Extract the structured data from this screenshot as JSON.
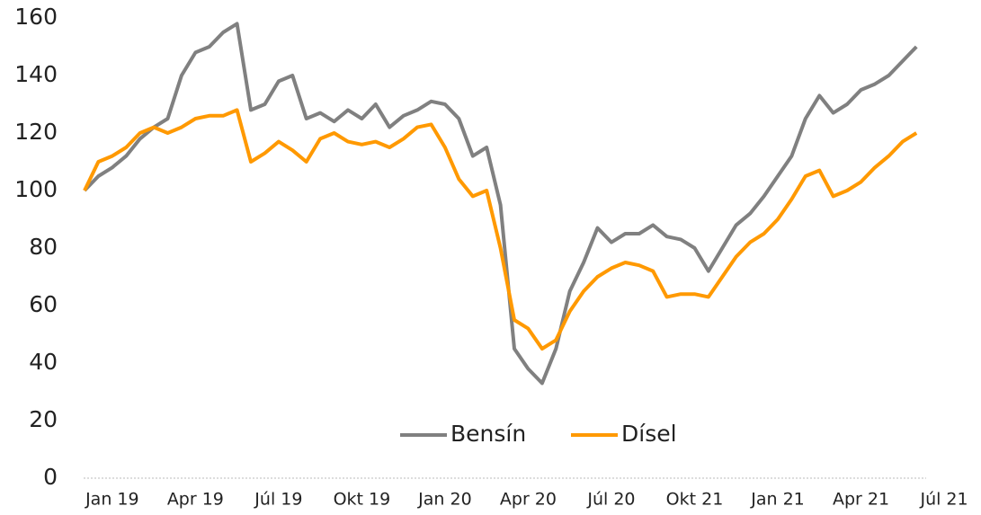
{
  "chart_data": {
    "type": "line",
    "categories": [
      null,
      null,
      "Jan 19",
      null,
      null,
      null,
      null,
      null,
      "Apr 19",
      null,
      null,
      null,
      null,
      null,
      "Júl 19",
      null,
      null,
      null,
      null,
      null,
      "Okt 19",
      null,
      null,
      null,
      null,
      null,
      "Jan 20",
      null,
      null,
      null,
      null,
      null,
      "Apr 20",
      null,
      null,
      null,
      null,
      null,
      "Júl 20",
      null,
      null,
      null,
      null,
      null,
      "Okt 21",
      null,
      null,
      null,
      null,
      null,
      "Jan 21",
      null,
      null,
      null,
      null,
      null,
      "Apr 21",
      null,
      null,
      null,
      null,
      null,
      "Júl 21"
    ],
    "series": [
      {
        "name": "Bensín",
        "color": "#808080",
        "values": [
          100,
          105,
          108,
          112,
          118,
          122,
          125,
          140,
          148,
          150,
          155,
          158,
          128,
          130,
          138,
          140,
          125,
          127,
          124,
          128,
          125,
          130,
          122,
          126,
          128,
          131,
          130,
          125,
          112,
          115,
          95,
          45,
          38,
          33,
          45,
          65,
          75,
          87,
          82,
          85,
          85,
          88,
          84,
          83,
          80,
          72,
          80,
          88,
          92,
          98,
          105,
          112,
          125,
          133,
          127,
          130,
          135,
          137,
          140,
          145,
          150,
          null,
          null
        ]
      },
      {
        "name": "Dísel",
        "color": "#ff9900",
        "values": [
          100,
          110,
          112,
          115,
          120,
          122,
          120,
          122,
          125,
          126,
          126,
          128,
          110,
          113,
          117,
          114,
          110,
          118,
          120,
          117,
          116,
          117,
          115,
          118,
          122,
          123,
          115,
          104,
          98,
          100,
          80,
          55,
          52,
          45,
          48,
          58,
          65,
          70,
          73,
          75,
          74,
          72,
          63,
          64,
          64,
          63,
          70,
          77,
          82,
          85,
          90,
          97,
          105,
          107,
          98,
          100,
          103,
          108,
          112,
          117,
          120,
          null,
          null
        ]
      }
    ],
    "ylim": [
      0,
      160
    ],
    "yticks": [
      0,
      20,
      40,
      60,
      80,
      100,
      120,
      140,
      160
    ],
    "grid": false
  }
}
